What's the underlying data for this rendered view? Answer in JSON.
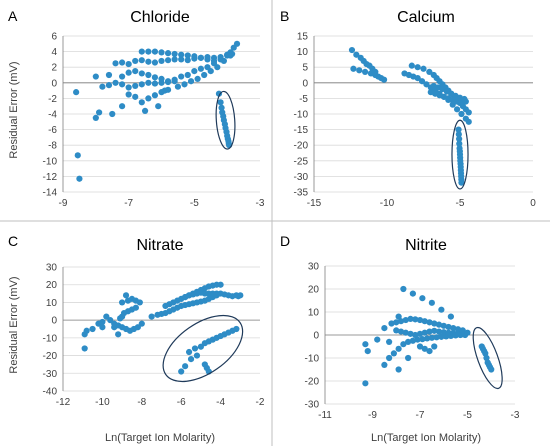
{
  "figure": {
    "point_color": "#2e8cc6",
    "outline_color": "#1f3a5a"
  },
  "chart_data": [
    {
      "letter": "A",
      "title": "Chloride",
      "type": "scatter",
      "ylabel": "Residual Error (mV)",
      "xlabel": "",
      "xlim": [
        -9,
        -3
      ],
      "ylim": [
        -14,
        6
      ],
      "xticks": [
        -9,
        -7,
        -5,
        -3
      ],
      "yticks": [
        -14,
        -12,
        -10,
        -8,
        -6,
        -4,
        -2,
        0,
        2,
        4,
        6
      ],
      "grid": true,
      "ellipse": {
        "cx": -4.05,
        "cy": -4.8,
        "rx": 0.28,
        "ry": 3.7
      },
      "x": [
        -8.6,
        -8.55,
        -8.5,
        -8.0,
        -7.9,
        -7.5,
        -7.2,
        -7.0,
        -6.8,
        -6.6,
        -6.4,
        -6.2,
        -6.0,
        -5.9,
        -5.8,
        -5.5,
        -5.3,
        -5.1,
        -4.9,
        -4.7,
        -4.5,
        -4.3,
        -4.1,
        -3.9,
        -3.8,
        -3.7,
        -8.0,
        -7.6,
        -7.2,
        -7.0,
        -6.8,
        -6.6,
        -6.4,
        -6.2,
        -6.0,
        -5.8,
        -5.6,
        -5.4,
        -5.2,
        -5.0,
        -4.8,
        -4.6,
        -4.4,
        -4.2,
        -4.0,
        -3.9,
        -7.8,
        -7.6,
        -7.4,
        -7.2,
        -7.0,
        -6.8,
        -6.6,
        -6.4,
        -6.2,
        -6.0,
        -5.8,
        -5.6,
        -7.4,
        -7.2,
        -7.0,
        -6.8,
        -6.6,
        -6.4,
        -6.2,
        -6.0,
        -5.8,
        -5.6,
        -5.4,
        -5.2,
        -5.0,
        -4.8,
        -4.6,
        -4.4,
        -4.2,
        -4.0,
        -3.85,
        -6.6,
        -6.4,
        -6.2,
        -6.0,
        -5.8,
        -5.6,
        -5.4,
        -5.2,
        -5.0,
        -4.8,
        -4.6,
        -4.4,
        -6.5,
        -6.1,
        -4.25,
        -4.2,
        -4.17,
        -4.15,
        -4.12,
        -4.1,
        -4.07,
        -4.05,
        -4.02,
        -4.0,
        -3.98,
        -3.96,
        -3.95,
        -3.94
      ],
      "y": [
        -1.2,
        -9.3,
        -12.3,
        -4.5,
        -3.8,
        -4.0,
        -3.0,
        -1.5,
        -1.8,
        -2.5,
        -2.0,
        -1.6,
        -1.2,
        -1.0,
        -0.9,
        -0.5,
        -0.2,
        0.2,
        0.5,
        1.0,
        1.5,
        2.0,
        2.8,
        3.5,
        4.5,
        5.0,
        0.8,
        1.0,
        0.8,
        1.3,
        1.5,
        1.2,
        1.0,
        0.7,
        0.5,
        0.2,
        0.4,
        0.8,
        1.0,
        1.5,
        1.8,
        2.0,
        2.5,
        3.0,
        3.6,
        3.9,
        -0.5,
        -0.3,
        0.0,
        -0.2,
        -0.6,
        -0.4,
        -0.2,
        0.0,
        -0.1,
        0.0,
        0.1,
        0.2,
        2.5,
        2.6,
        2.4,
        2.8,
        2.9,
        2.7,
        2.6,
        2.8,
        2.9,
        3.0,
        3.0,
        2.9,
        3.1,
        3.2,
        3.3,
        3.2,
        3.3,
        3.5,
        3.7,
        4.0,
        4.0,
        4.0,
        3.9,
        3.8,
        3.7,
        3.6,
        3.5,
        3.4,
        3.2,
        3.0,
        2.8,
        -3.6,
        -3.0,
        -1.4,
        -2.5,
        -3.2,
        -3.8,
        -4.3,
        -4.8,
        -5.3,
        -5.8,
        -6.3,
        -6.8,
        -7.2,
        -7.5,
        -7.8,
        -8.0
      ]
    },
    {
      "letter": "B",
      "title": "Calcium",
      "type": "scatter",
      "ylabel": "",
      "xlabel": "",
      "xlim": [
        -15,
        0
      ],
      "ylim": [
        -35,
        15
      ],
      "xticks": [
        -15,
        -10,
        -5,
        0
      ],
      "yticks": [
        -35,
        -30,
        -25,
        -20,
        -15,
        -10,
        -5,
        0,
        5,
        10,
        15
      ],
      "grid": true,
      "ellipse": {
        "cx": -5.0,
        "cy": -23.0,
        "rx": 0.55,
        "ry": 11.0
      },
      "x": [
        -12.4,
        -12.1,
        -11.8,
        -11.6,
        -11.4,
        -11.2,
        -11.0,
        -10.8,
        -12.3,
        -11.9,
        -11.5,
        -11.1,
        -10.8,
        -10.6,
        -10.4,
        -10.2,
        -8.3,
        -7.9,
        -7.5,
        -7.1,
        -6.8,
        -6.6,
        -6.4,
        -6.2,
        -6.0,
        -5.8,
        -5.6,
        -5.4,
        -5.2,
        -5.0,
        -4.8,
        -4.6,
        -4.4,
        -8.8,
        -8.5,
        -8.2,
        -7.9,
        -7.6,
        -7.3,
        -7.0,
        -6.7,
        -6.4,
        -6.1,
        -5.8,
        -5.5,
        -5.2,
        -4.9,
        -4.6,
        -4.4,
        -7.0,
        -6.7,
        -6.4,
        -6.1,
        -5.8,
        -5.5,
        -5.2,
        -4.9,
        -4.6,
        -6.8,
        -6.5,
        -6.2,
        -5.9,
        -5.6,
        -5.3,
        -5.0,
        -4.7,
        -5.1,
        -5.08,
        -5.06,
        -5.05,
        -5.03,
        -5.01,
        -5.0,
        -4.99,
        -4.98,
        -4.96,
        -4.95,
        -4.94,
        -4.93,
        -4.92,
        -4.91,
        -4.9
      ],
      "y": [
        10.5,
        9.0,
        8.0,
        7.0,
        6.0,
        5.5,
        4.5,
        3.5,
        4.5,
        4.0,
        3.5,
        3.0,
        2.5,
        2.0,
        1.5,
        1.0,
        5.5,
        5.0,
        4.5,
        3.5,
        2.5,
        1.5,
        0.5,
        -0.5,
        -1.5,
        -2.5,
        -3.5,
        -4.5,
        -5.5,
        -6.5,
        -7.5,
        -8.5,
        -9.5,
        3.0,
        2.5,
        2.0,
        1.5,
        0.5,
        -0.5,
        -1.5,
        -2.5,
        -3.5,
        -4.5,
        -5.5,
        -7.0,
        -8.5,
        -10.0,
        -11.5,
        -12.5,
        -3.0,
        -3.5,
        -4.0,
        -4.5,
        -5.0,
        -5.5,
        -6.0,
        -6.0,
        -6.0,
        -1.0,
        -1.5,
        -2.0,
        -2.8,
        -3.5,
        -4.2,
        -4.8,
        -5.2,
        -15.0,
        -16.5,
        -18.0,
        -19.5,
        -21.0,
        -22.0,
        -23.0,
        -24.0,
        -25.0,
        -26.0,
        -27.0,
        -28.0,
        -29.0,
        -30.0,
        -31.0,
        -32.0
      ]
    },
    {
      "letter": "C",
      "title": "Nitrate",
      "type": "scatter",
      "ylabel": "Residual Error (mV)",
      "xlabel": "Ln(Target Ion Molarity)",
      "xlim": [
        -12,
        -2
      ],
      "ylim": [
        -40,
        30
      ],
      "xticks": [
        -12,
        -10,
        -8,
        -6,
        -4,
        -2
      ],
      "yticks": [
        -40,
        -30,
        -20,
        -10,
        0,
        10,
        20,
        30
      ],
      "grid": true,
      "ellipse": {
        "cx": -4.9,
        "cy": -16.0,
        "rx": 2.3,
        "ry": 14.0
      },
      "x": [
        -10.9,
        -10.9,
        -10.8,
        -10.5,
        -10.2,
        -10.0,
        -10.0,
        -9.8,
        -9.6,
        -9.4,
        -9.2,
        -9.0,
        -8.8,
        -9.4,
        -9.2,
        -9.0,
        -8.8,
        -8.6,
        -8.4,
        -8.2,
        -8.0,
        -9.1,
        -8.9,
        -8.7,
        -8.5,
        -8.3,
        -9.0,
        -8.7,
        -8.5,
        -8.3,
        -8.1,
        -7.5,
        -7.2,
        -7.0,
        -6.8,
        -6.6,
        -6.4,
        -6.2,
        -6.0,
        -5.8,
        -5.6,
        -5.4,
        -5.2,
        -5.0,
        -4.8,
        -4.6,
        -4.4,
        -4.2,
        -6.8,
        -6.6,
        -6.4,
        -6.2,
        -6.0,
        -5.8,
        -5.6,
        -5.4,
        -5.2,
        -5.0,
        -4.8,
        -4.6,
        -4.4,
        -4.2,
        -4.0,
        -5.8,
        -5.6,
        -5.4,
        -5.2,
        -5.0,
        -4.8,
        -4.6,
        -4.4,
        -4.2,
        -4.0,
        -3.8,
        -3.6,
        -3.4,
        -3.2,
        -3.1,
        -3.0,
        -5.6,
        -5.3,
        -5.0,
        -4.8,
        -4.6,
        -4.4,
        -4.2,
        -4.0,
        -3.8,
        -3.6,
        -3.4,
        -3.2,
        -6.0,
        -5.8,
        -5.5,
        -5.2,
        -4.8,
        -4.7,
        -4.6
      ],
      "y": [
        -16.0,
        -8.0,
        -6.0,
        -5.0,
        -2.0,
        -4.0,
        -1.0,
        2.0,
        0.0,
        -4.0,
        -8.0,
        2.0,
        14.0,
        -2.0,
        -3.0,
        -4.0,
        -5.0,
        -6.0,
        -5.0,
        -4.0,
        -2.0,
        1.0,
        4.0,
        5.0,
        6.0,
        7.0,
        10.0,
        11.0,
        12.0,
        11.0,
        10.0,
        2.0,
        3.0,
        3.5,
        4.0,
        5.0,
        6.0,
        7.0,
        8.0,
        8.5,
        9.0,
        9.5,
        10.0,
        10.5,
        11.0,
        12.0,
        13.0,
        14.0,
        8.0,
        9.0,
        10.0,
        11.0,
        12.0,
        13.0,
        14.0,
        15.0,
        16.0,
        17.0,
        18.0,
        19.0,
        19.5,
        20.0,
        20.0,
        13.0,
        14.0,
        14.5,
        15.0,
        15.5,
        15.0,
        15.0,
        15.0,
        15.0,
        15.0,
        14.5,
        14.0,
        13.5,
        14.0,
        13.5,
        14.0,
        -18.0,
        -16.0,
        -15.0,
        -13.0,
        -12.0,
        -11.0,
        -10.0,
        -9.0,
        -8.0,
        -7.0,
        -6.0,
        -5.0,
        -29.0,
        -26.0,
        -22.0,
        -20.0,
        -25.0,
        -27.0,
        -29.0
      ]
    },
    {
      "letter": "D",
      "title": "Nitrite",
      "type": "scatter",
      "ylabel": "",
      "xlabel": "Ln(Target Ion Molarity)",
      "xlim": [
        -11,
        -3
      ],
      "ylim": [
        -30,
        30
      ],
      "xticks": [
        -11,
        -9,
        -7,
        -5,
        -3
      ],
      "yticks": [
        -30,
        -20,
        -10,
        0,
        10,
        20,
        30
      ],
      "grid": true,
      "ellipse": {
        "cx": -4.15,
        "cy": -10.0,
        "rx": 0.42,
        "ry": 14.0
      },
      "x": [
        -9.3,
        -9.3,
        -9.2,
        -8.8,
        -8.5,
        -8.3,
        -8.1,
        -7.9,
        -7.7,
        -7.5,
        -7.3,
        -7.1,
        -6.9,
        -6.7,
        -6.5,
        -6.3,
        -6.1,
        -5.9,
        -5.7,
        -5.5,
        -5.3,
        -5.1,
        -8.0,
        -7.8,
        -7.6,
        -7.4,
        -7.2,
        -7.0,
        -6.8,
        -6.6,
        -6.4,
        -6.2,
        -6.0,
        -5.8,
        -5.6,
        -5.4,
        -5.2,
        -8.2,
        -8.0,
        -7.8,
        -7.6,
        -7.4,
        -7.2,
        -7.0,
        -6.8,
        -6.6,
        -6.4,
        -6.2,
        -6.0,
        -5.8,
        -5.6,
        -5.4,
        -5.2,
        -5.0,
        -7.7,
        -7.3,
        -6.9,
        -6.5,
        -6.1,
        -5.7,
        -7.0,
        -6.8,
        -6.6,
        -6.4,
        -8.5,
        -7.9,
        -7.5,
        -7.9,
        -8.3,
        -4.4,
        -4.35,
        -4.3,
        -4.25,
        -4.2,
        -4.15,
        -4.1,
        -4.05,
        -4.0
      ],
      "y": [
        -21.0,
        -4.0,
        -7.0,
        -2.0,
        -13.0,
        -10.0,
        -8.0,
        -6.0,
        -4.0,
        -3.0,
        -2.5,
        -2.0,
        -1.8,
        -1.5,
        -1.2,
        -1.0,
        -0.8,
        -0.6,
        -0.4,
        -0.2,
        0.0,
        0.0,
        2.0,
        1.5,
        1.0,
        0.5,
        0.0,
        0.5,
        1.0,
        1.5,
        1.8,
        1.5,
        1.2,
        1.0,
        0.8,
        0.5,
        0.3,
        5.0,
        5.5,
        6.0,
        6.5,
        7.0,
        6.8,
        6.5,
        6.0,
        5.5,
        5.0,
        4.5,
        4.0,
        3.5,
        3.0,
        2.5,
        2.0,
        1.0,
        20.0,
        18.0,
        16.0,
        14.0,
        11.0,
        8.0,
        -5.0,
        -6.0,
        -7.0,
        -5.0,
        3.0,
        8.0,
        -10.0,
        -15.0,
        -3.0,
        -5.0,
        -6.0,
        -7.0,
        -8.0,
        -10.0,
        -12.0,
        -13.0,
        -14.0,
        -15.0
      ]
    }
  ]
}
